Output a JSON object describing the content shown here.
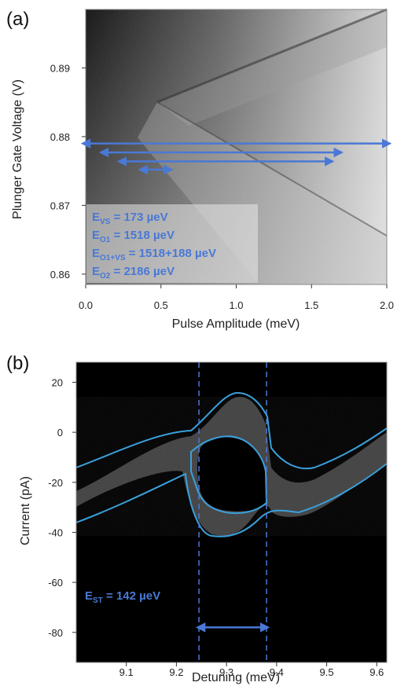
{
  "chart_data": [
    {
      "panel": "(a)",
      "type": "heatmap",
      "xlabel": "Pulse Amplitude (meV)",
      "ylabel": "Plunger Gate Voltage (V)",
      "xlim": [
        0.0,
        2.0
      ],
      "ylim": [
        0.8585,
        0.8985
      ],
      "x_ticks": [
        "0.0",
        "0.5",
        "1.0",
        "1.5",
        "2.0"
      ],
      "x_tick_values": [
        0.0,
        0.5,
        1.0,
        1.5,
        2.0
      ],
      "y_ticks": [
        "0.86",
        "0.87",
        "0.88",
        "0.89"
      ],
      "y_tick_values": [
        0.86,
        0.87,
        0.88,
        0.89
      ],
      "colormap": "grayscale",
      "arrows": [
        {
          "x": [
            0.0,
            2.0
          ],
          "y": 0.879
        },
        {
          "x": [
            0.12,
            1.68
          ],
          "y": 0.8777
        },
        {
          "x": [
            0.24,
            1.62
          ],
          "y": 0.8764
        },
        {
          "x": [
            0.38,
            0.55
          ],
          "y": 0.8752
        }
      ],
      "labels": [
        {
          "main": "E",
          "sub": "VS",
          "value": " = 173 µeV"
        },
        {
          "main": "E",
          "sub": "O1",
          "value": " = 1518 µeV"
        },
        {
          "main": "E",
          "sub": "O1+VS",
          "value": " = 1518+188 µeV"
        },
        {
          "main": "E",
          "sub": "O2",
          "value": " = 2186 µeV"
        }
      ]
    },
    {
      "panel": "(b)",
      "type": "heatmap",
      "xlabel": "Detuning (meV)",
      "ylabel": "Current (pA)",
      "xlim": [
        9.0,
        9.62
      ],
      "ylim": [
        -92,
        28
      ],
      "x_ticks": [
        "9.1",
        "9.2",
        "9.3",
        "9.4",
        "9.5",
        "9.6"
      ],
      "x_tick_values": [
        9.1,
        9.2,
        9.3,
        9.4,
        9.5,
        9.6
      ],
      "y_ticks": [
        "20",
        "0",
        "-20",
        "-40",
        "-60",
        "-80"
      ],
      "y_tick_values": [
        20,
        0,
        -20,
        -40,
        -60,
        -80
      ],
      "colormap": "grayscale",
      "dashed_lines_x": [
        9.245,
        9.38
      ],
      "arrow": {
        "x": [
          9.245,
          9.38
        ],
        "y": -78
      },
      "label": {
        "main": "E",
        "sub": "ST",
        "value": " = 142 µeV"
      }
    }
  ],
  "colors": {
    "accent": "#4a78d6",
    "contour": "#3aa0dc"
  }
}
